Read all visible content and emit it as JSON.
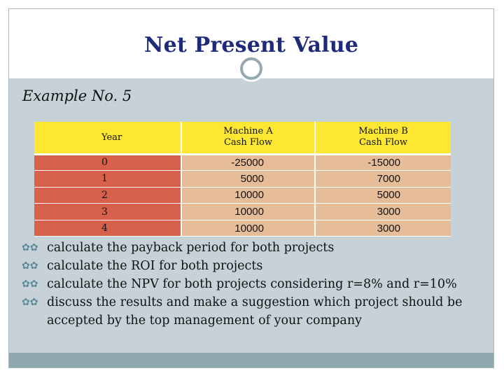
{
  "slide": {
    "title": "Net Present Value",
    "subtitle": "Example No. 5"
  },
  "table": {
    "headers": {
      "year": "Year",
      "machine_a": "Machine A Cash Flow",
      "machine_a_line1": "Machine A",
      "machine_a_line2": "Cash Flow",
      "machine_b": "Machine B Cash Flow",
      "machine_b_line1": "Machine B",
      "machine_b_line2": "Cash Flow"
    },
    "rows": [
      {
        "year": "0",
        "machine_a": "-25000",
        "machine_b": "-15000"
      },
      {
        "year": "1",
        "machine_a": "5000",
        "machine_b": "7000"
      },
      {
        "year": "2",
        "machine_a": "10000",
        "machine_b": "5000"
      },
      {
        "year": "3",
        "machine_a": "10000",
        "machine_b": "3000"
      },
      {
        "year": "4",
        "machine_a": "10000",
        "machine_b": "3000"
      }
    ]
  },
  "tasks": [
    "calculate the payback period for both projects",
    "calculate the ROI for both projects",
    "calculate the NPV for both projects considering r=8% and r=10%",
    "discuss the results and make a suggestion which project should be accepted by the top management of your company"
  ],
  "icons": {
    "bullet": "ornamental-bullet-icon",
    "divider": "ring-divider-icon"
  },
  "colors": {
    "title": "#1f2a7a",
    "header_fill": "#fde733",
    "year_fill": "#d8614c",
    "cell_fill": "#e7bc98",
    "content_bg": "#c6d1d8",
    "accent": "#95aab0"
  }
}
